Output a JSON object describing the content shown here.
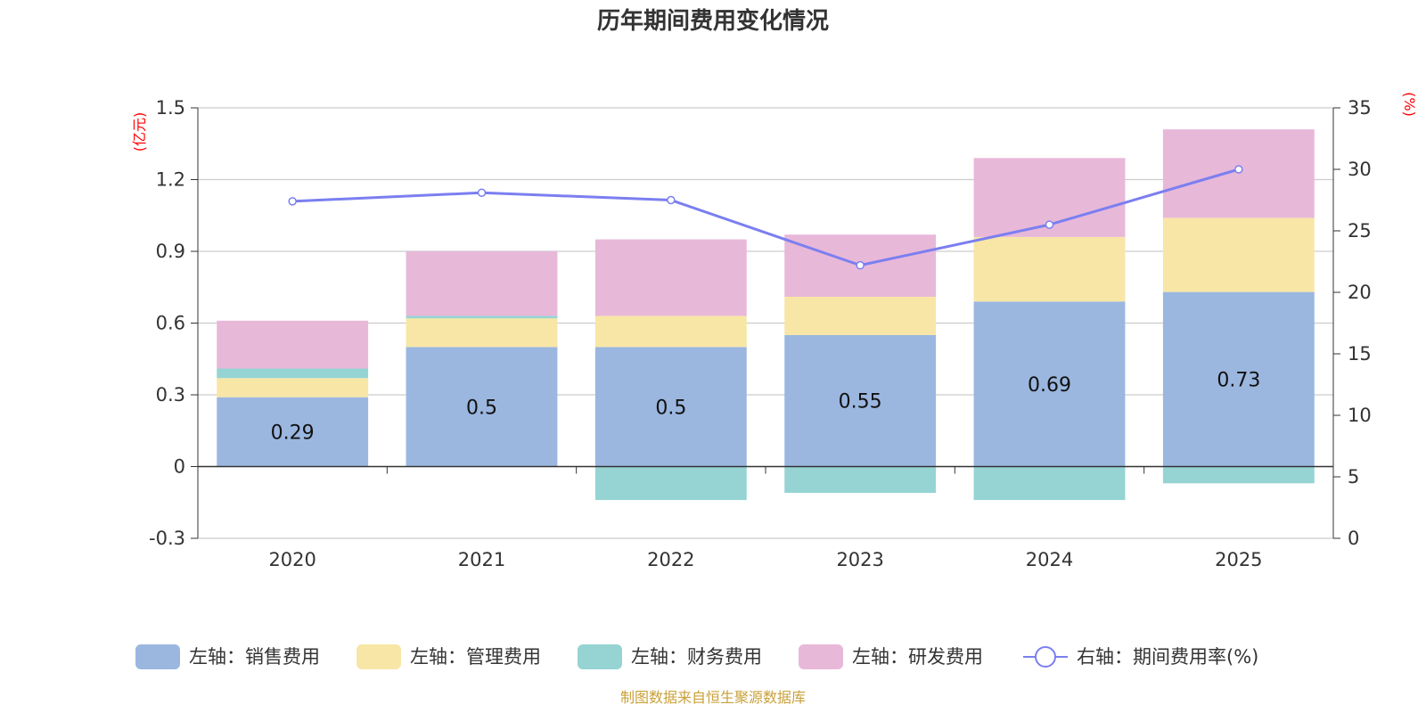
{
  "chart_data": {
    "type": "bar",
    "title": "历年期间费用变化情况",
    "categories": [
      "2020",
      "2021",
      "2022",
      "2023",
      "2024",
      "2025"
    ],
    "left_axis": {
      "unit": "(亿元)",
      "ylim": [
        -0.3,
        1.5
      ],
      "ticks": [
        "-0.3",
        "0",
        "0.3",
        "0.6",
        "0.9",
        "1.2",
        "1.5"
      ]
    },
    "right_axis": {
      "unit": "(%)",
      "ylim": [
        0,
        35
      ],
      "ticks": [
        "0",
        "5",
        "10",
        "15",
        "20",
        "25",
        "30",
        "35"
      ]
    },
    "series": [
      {
        "name": "左轴：销售费用",
        "type": "bar",
        "stack": true,
        "color": "#9bb7e0",
        "values": [
          0.29,
          0.5,
          0.5,
          0.55,
          0.69,
          0.73
        ],
        "labels": [
          "0.29",
          "0.5",
          "0.5",
          "0.55",
          "0.69",
          "0.73"
        ]
      },
      {
        "name": "左轴：管理费用",
        "type": "bar",
        "stack": true,
        "color": "#f7e6a6",
        "values": [
          0.08,
          0.12,
          0.13,
          0.16,
          0.27,
          0.31
        ]
      },
      {
        "name": "左轴：财务费用",
        "type": "bar",
        "stack": true,
        "color": "#96d4d4",
        "values": [
          0.04,
          0.01,
          -0.14,
          -0.11,
          -0.14,
          -0.07
        ]
      },
      {
        "name": "左轴：研发费用",
        "type": "bar",
        "stack": true,
        "color": "#e8b8d9",
        "values": [
          0.2,
          0.27,
          0.32,
          0.26,
          0.33,
          0.37
        ]
      },
      {
        "name": "右轴：期间费用率(%)",
        "type": "line",
        "color": "#7b7ff0",
        "values": [
          27.4,
          28.1,
          27.5,
          22.2,
          25.5,
          30.0
        ]
      }
    ],
    "source": "制图数据来自恒生聚源数据库"
  }
}
